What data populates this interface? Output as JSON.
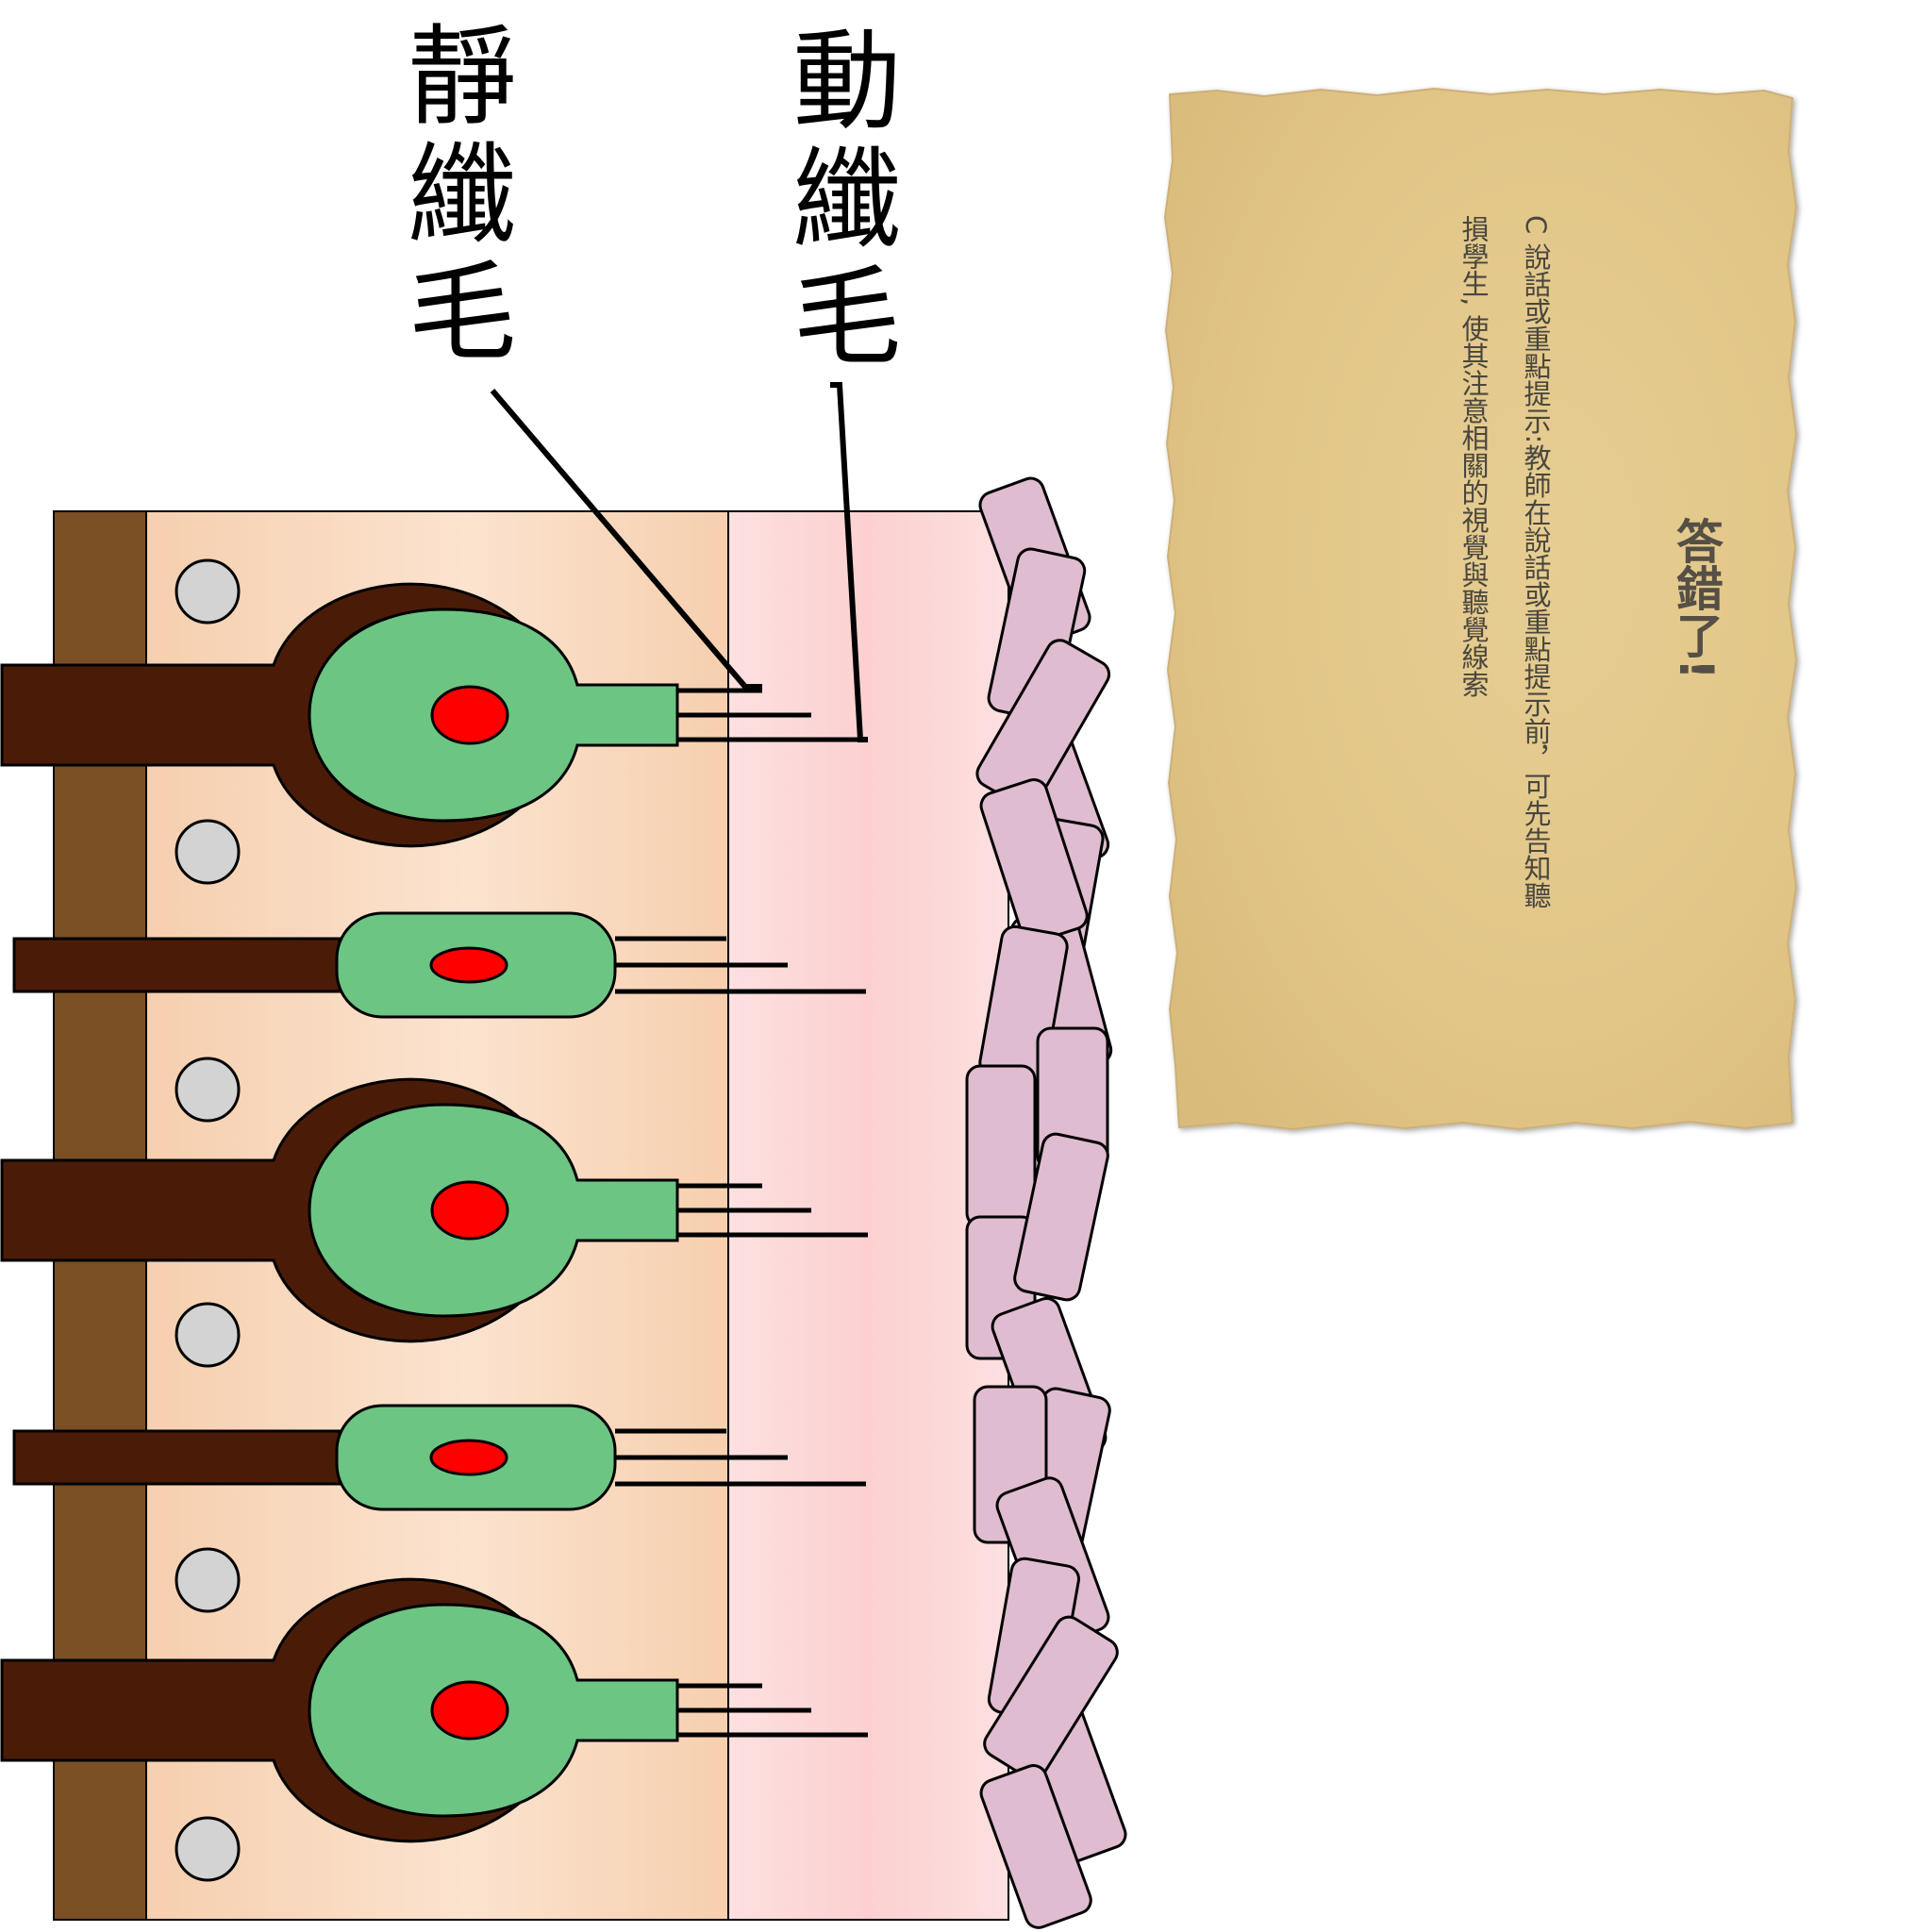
{
  "labels": {
    "kinocilium": "動纖毛",
    "stereocilia": "靜纖毛"
  },
  "feedback_card": {
    "title": "答錯了!",
    "lines": [
      "C 說話或重點提示:教師在說話或重點提示前，可先告知聽",
      "損學生, 使其注意相關的視覺與聽覺線索"
    ]
  },
  "colors": {
    "basement": "#7a4f24",
    "cell_outer": "#4a1c08",
    "cell_inner": "#6cc583",
    "nucleus": "#ff0000",
    "support_nucleus": "#d3d3d3",
    "epithelium": "#f7d3b3",
    "gel_layer": "#fcd2d2",
    "otoconia": "#e0bcd0",
    "card": "#e0c68f"
  }
}
